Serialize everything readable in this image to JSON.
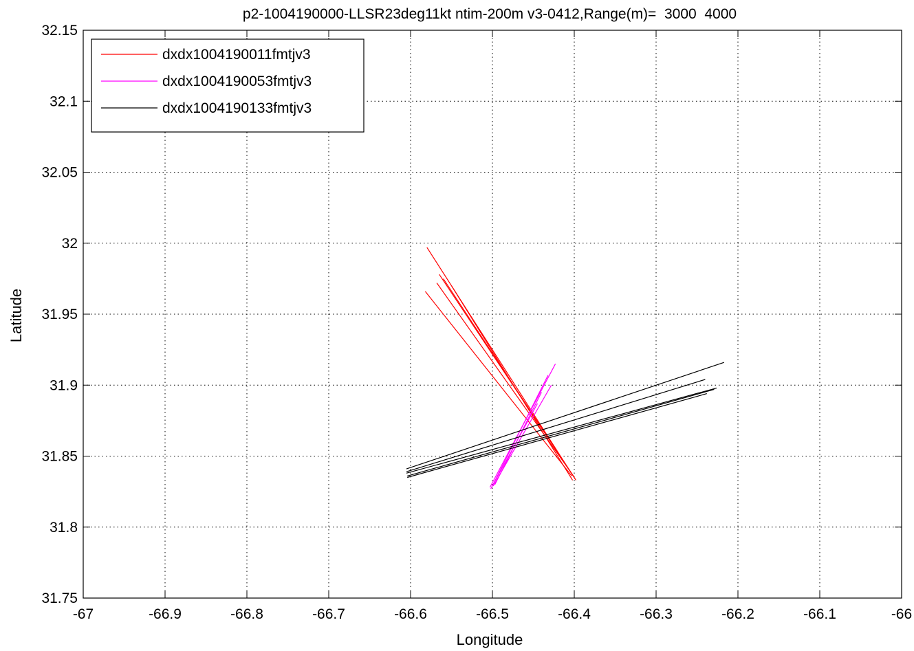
{
  "chart_data": {
    "type": "line",
    "title": "p2-1004190000-LLSR23deg11kt ntim-200m v3-0412,Range(m)=  3000  4000",
    "xlabel": "Longitude",
    "ylabel": "Latitude",
    "xlim": [
      -67,
      -66
    ],
    "ylim": [
      31.75,
      32.15
    ],
    "x_ticks": [
      -67,
      -66.9,
      -66.8,
      -66.7,
      -66.6,
      -66.5,
      -66.4,
      -66.3,
      -66.2,
      -66.1,
      -66
    ],
    "x_tick_labels": [
      "-67",
      "-66.9",
      "-66.8",
      "-66.7",
      "-66.6",
      "-66.5",
      "-66.4",
      "-66.3",
      "-66.2",
      "-66.1",
      "-66"
    ],
    "y_ticks": [
      31.75,
      31.8,
      31.85,
      31.9,
      31.95,
      32,
      32.05,
      32.1,
      32.15
    ],
    "y_tick_labels": [
      "31.75",
      "31.8",
      "31.85",
      "31.9",
      "31.95",
      "32",
      "32.05",
      "32.1",
      "32.15"
    ],
    "grid": true,
    "legend_position": "top-left",
    "series": [
      {
        "name": "dxdx1004190011fmtjv3",
        "color": "#ff0000",
        "segments": [
          [
            [
              -66.58,
              31.997
            ],
            [
              -66.398,
              31.833
            ]
          ],
          [
            [
              -66.565,
              31.978
            ],
            [
              -66.4,
              31.835
            ]
          ],
          [
            [
              -66.56,
              31.975
            ],
            [
              -66.399,
              31.834
            ]
          ],
          [
            [
              -66.568,
              31.972
            ],
            [
              -66.401,
              31.836
            ]
          ],
          [
            [
              -66.582,
              31.966
            ],
            [
              -66.403,
              31.836
            ]
          ],
          [
            [
              -66.55,
              31.97
            ],
            [
              -66.402,
              31.833
            ]
          ]
        ]
      },
      {
        "name": "dxdx1004190053fmtjv3",
        "color": "#ff00ff",
        "segments": [
          [
            [
              -66.503,
              31.828
            ],
            [
              -66.423,
              31.915
            ]
          ],
          [
            [
              -66.501,
              31.828
            ],
            [
              -66.432,
              31.907
            ]
          ],
          [
            [
              -66.499,
              31.829
            ],
            [
              -66.428,
              31.9
            ]
          ],
          [
            [
              -66.497,
              31.83
            ],
            [
              -66.44,
              31.895
            ]
          ],
          [
            [
              -66.502,
              31.827
            ],
            [
              -66.445,
              31.887
            ]
          ]
        ]
      },
      {
        "name": "dxdx1004190133fmtjv3",
        "color": "#000000",
        "segments": [
          [
            [
              -66.605,
              31.841
            ],
            [
              -66.217,
              31.916
            ]
          ],
          [
            [
              -66.605,
              31.839
            ],
            [
              -66.24,
              31.904
            ]
          ],
          [
            [
              -66.605,
              31.838
            ],
            [
              -66.226,
              31.898
            ]
          ],
          [
            [
              -66.604,
              31.836
            ],
            [
              -66.229,
              31.897
            ]
          ],
          [
            [
              -66.604,
              31.835
            ],
            [
              -66.238,
              31.894
            ]
          ]
        ]
      }
    ]
  }
}
